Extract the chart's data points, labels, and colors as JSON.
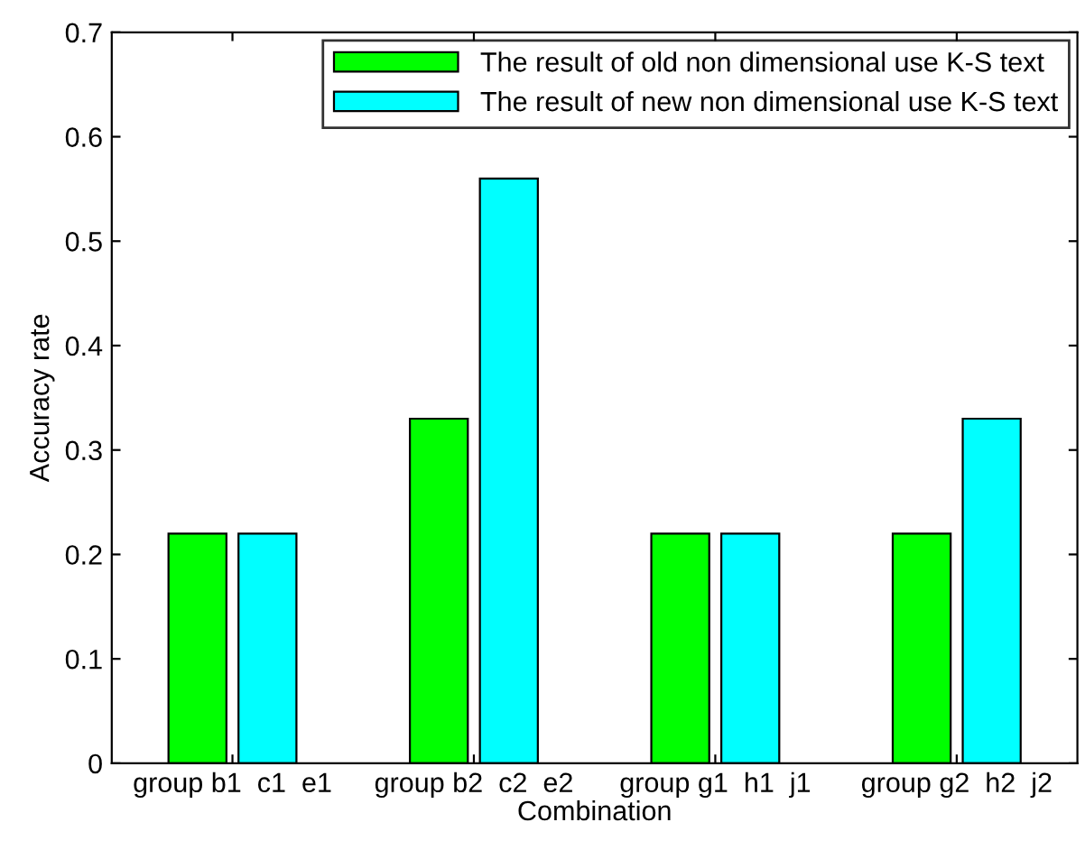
{
  "chart_data": {
    "type": "bar",
    "xlabel": "Combination",
    "ylabel": "Accuracy rate",
    "categories": [
      "group b1  c1  e1",
      "group b2  c2  e2",
      "group g1  h1  j1",
      "group g2  h2  j2"
    ],
    "series": [
      {
        "name": "The result of old non dimensional use K-S text",
        "color": "#00ff00",
        "values": [
          0.22,
          0.33,
          0.22,
          0.22
        ]
      },
      {
        "name": "The result of new non dimensional use K-S text",
        "color": "#00ffff",
        "values": [
          0.22,
          0.56,
          0.22,
          0.33
        ]
      }
    ],
    "ylim": [
      0,
      0.7
    ],
    "yticks": [
      0,
      0.1,
      0.2,
      0.3,
      0.4,
      0.5,
      0.6,
      0.7
    ],
    "grid": false,
    "legend": "top right"
  }
}
